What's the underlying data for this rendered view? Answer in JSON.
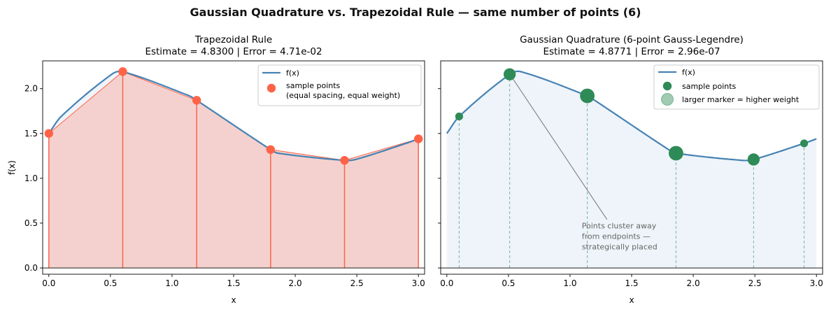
{
  "figure": {
    "suptitle": "Gaussian Quadrature vs. Trapezoidal Rule — same number of points (6)"
  },
  "colors": {
    "curve": "#4682b4",
    "trap_points": "#ff6347",
    "trap_fill": "#f3cfcb",
    "gauss_points": "#2e8b57",
    "gauss_fill": "#eef4f9",
    "annotation": "#666666"
  },
  "chart_data": [
    {
      "type": "line",
      "title": "Trapezoidal Rule",
      "subtitle": "Estimate = 4.8300  |  Error = 4.71e-02",
      "xlabel": "x",
      "ylabel": "f(x)",
      "xlim": [
        -0.05,
        3.05
      ],
      "ylim": [
        -0.07,
        2.31
      ],
      "xticks": [
        0.0,
        0.5,
        1.0,
        1.5,
        2.0,
        2.5,
        3.0
      ],
      "xtick_labels": [
        "0.0",
        "0.5",
        "1.0",
        "1.5",
        "2.0",
        "2.5",
        "3.0"
      ],
      "yticks": [
        0.0,
        0.5,
        1.0,
        1.5,
        2.0
      ],
      "ytick_labels": [
        "0.0",
        "0.5",
        "1.0",
        "1.5",
        "2.0"
      ],
      "legend": {
        "placement": "top-right",
        "entries": [
          {
            "label": "f(x)",
            "kind": "line"
          },
          {
            "label": "sample points",
            "label2": "(equal spacing, equal weight)",
            "kind": "point"
          }
        ]
      },
      "series": [
        {
          "name": "sample points",
          "x": [
            0.0,
            0.6,
            1.2,
            1.8,
            2.4,
            3.0
          ],
          "y": [
            1.5,
            2.19,
            1.87,
            1.32,
            1.2,
            1.44
          ]
        }
      ]
    },
    {
      "type": "line",
      "title": "Gaussian Quadrature (6-point Gauss-Legendre)",
      "subtitle": "Estimate = 4.8771  |  Error = 2.96e-07",
      "xlabel": "x",
      "ylabel": "",
      "xlim": [
        -0.05,
        3.05
      ],
      "ylim": [
        -0.07,
        2.31
      ],
      "xticks": [
        0.0,
        0.5,
        1.0,
        1.5,
        2.0,
        2.5,
        3.0
      ],
      "xtick_labels": [
        "0.0",
        "0.5",
        "1.0",
        "1.5",
        "2.0",
        "2.5",
        "3.0"
      ],
      "yticks": [
        0.0,
        0.5,
        1.0,
        1.5,
        2.0
      ],
      "legend": {
        "placement": "top-right",
        "entries": [
          {
            "label": "f(x)",
            "kind": "line"
          },
          {
            "label": "sample points",
            "kind": "point"
          },
          {
            "label": "larger marker = higher weight",
            "kind": "big-point"
          }
        ]
      },
      "annotation": {
        "lines": [
          "Points cluster away",
          "from endpoints —",
          "strategically placed"
        ],
        "text_at": [
          1.3,
          0.44
        ],
        "arrow_to": [
          0.51,
          2.16
        ]
      },
      "series": [
        {
          "name": "sample points",
          "x": [
            0.1,
            0.51,
            1.14,
            1.86,
            2.49,
            2.9
          ],
          "y": [
            1.69,
            2.16,
            1.92,
            1.28,
            1.21,
            1.39
          ],
          "weight": [
            0.257,
            0.541,
            0.702,
            0.702,
            0.541,
            0.257
          ]
        }
      ]
    }
  ]
}
